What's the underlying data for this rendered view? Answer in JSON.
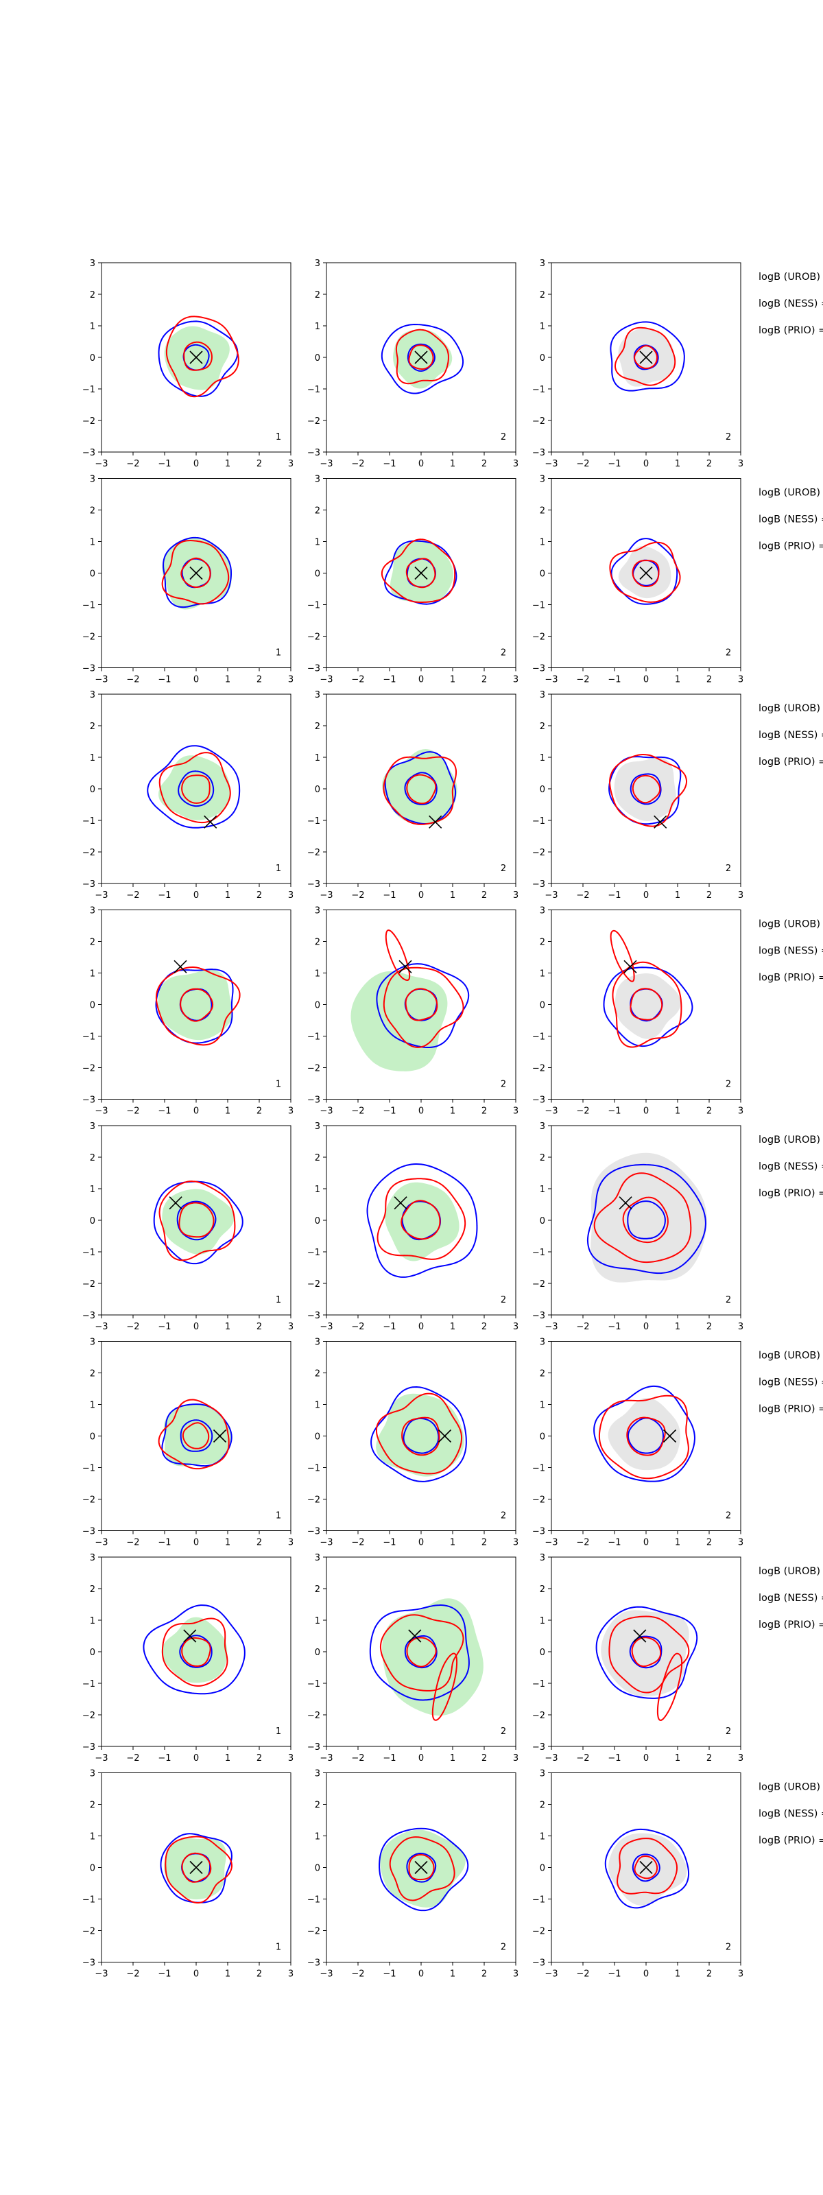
{
  "figure": {
    "rows": 8,
    "cols": 3,
    "side_annotations": [
      "logB (UROB)",
      "logB (NESS) =",
      "logB (PRIO) ="
    ]
  },
  "chart_data": {
    "type": "contour",
    "xlim": [
      -3,
      3
    ],
    "ylim": [
      -3,
      3
    ],
    "x_ticks": [
      -3,
      -2,
      -1,
      0,
      1,
      2,
      3
    ],
    "y_ticks": [
      3,
      2,
      1,
      0,
      -1,
      -2,
      -3
    ],
    "colors": {
      "red_contour": "#ff0000",
      "blue_contour": "#0000ff",
      "green_fill": "#c6f0c6",
      "gray_fill": "#e6e6e6",
      "marker": "#000000"
    },
    "rows": [
      {
        "marker": [
          0.0,
          0.0
        ],
        "panel_labels": [
          "1",
          "2",
          "2"
        ]
      },
      {
        "marker": [
          0.0,
          0.0
        ],
        "panel_labels": [
          "1",
          "2",
          "2"
        ]
      },
      {
        "marker": [
          0.45,
          -1.05
        ],
        "panel_labels": [
          "1",
          "2",
          "2"
        ]
      },
      {
        "marker": [
          -0.5,
          1.2
        ],
        "panel_labels": [
          "1",
          "2",
          "2"
        ]
      },
      {
        "marker": [
          -0.65,
          0.55
        ],
        "panel_labels": [
          "1",
          "2",
          "2"
        ]
      },
      {
        "marker": [
          0.75,
          0.0
        ],
        "panel_labels": [
          "1",
          "2",
          "2"
        ]
      },
      {
        "marker": [
          -0.2,
          0.5
        ],
        "panel_labels": [
          "1",
          "2",
          "2"
        ]
      },
      {
        "marker": [
          0.0,
          0.0
        ],
        "panel_labels": [
          "1",
          "2",
          "2"
        ]
      }
    ]
  }
}
